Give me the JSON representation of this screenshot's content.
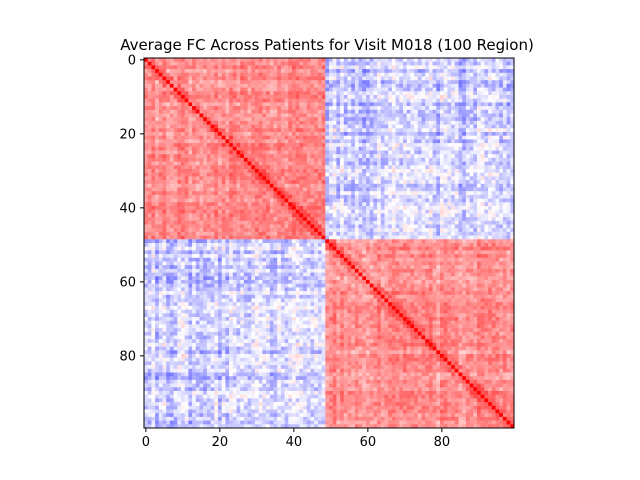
{
  "chart_data": {
    "type": "heatmap",
    "title": "Average FC Across Patients for Visit M018 (100 Region)",
    "xlabel": "",
    "ylabel": "",
    "n": 100,
    "xlim": [
      0,
      99
    ],
    "ylim": [
      99,
      0
    ],
    "x_ticks": [
      0,
      20,
      40,
      60,
      80
    ],
    "y_ticks": [
      0,
      20,
      40,
      60,
      80
    ],
    "colormap": "bwr",
    "color_low": "#0000ff",
    "color_mid": "#ffffff",
    "color_high": "#ff0000",
    "block_split": 49,
    "block_pattern": {
      "within_block_range": [
        0.15,
        0.7
      ],
      "between_block_range": [
        -0.6,
        0.2
      ],
      "diagonal": 1.0
    },
    "grid": false,
    "legend": "none"
  }
}
